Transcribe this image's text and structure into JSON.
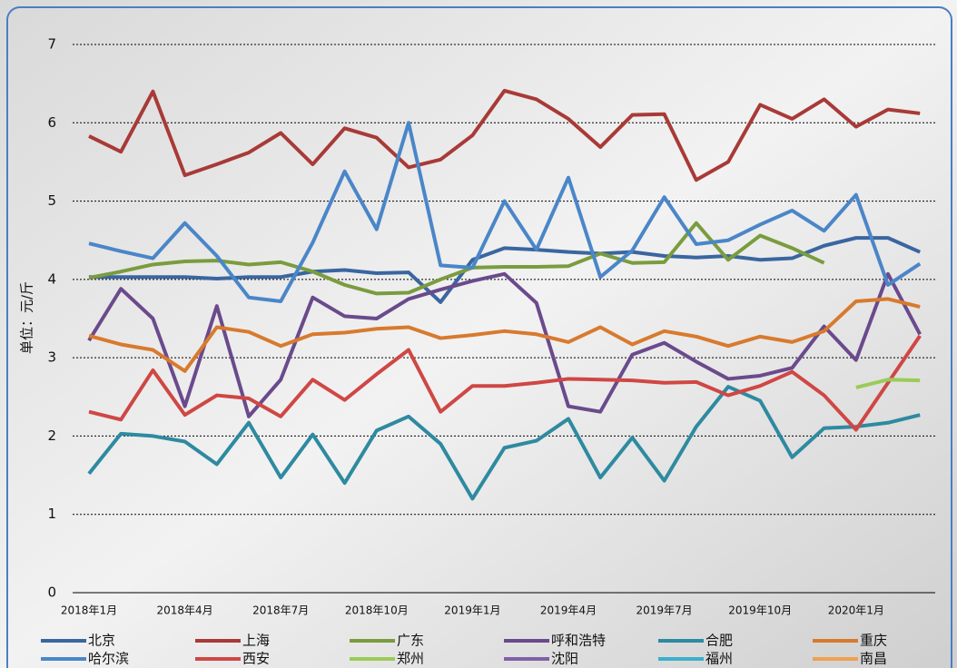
{
  "chart_data": {
    "type": "line",
    "y_label": "单位：元/斤",
    "categories": [
      "2018年1月",
      null,
      null,
      "2018年4月",
      null,
      null,
      "2018年7月",
      null,
      null,
      "2018年10月",
      null,
      null,
      "2019年1月",
      null,
      null,
      "2019年4月",
      null,
      null,
      "2019年7月",
      null,
      null,
      "2019年10月",
      null,
      null,
      "2020年1月",
      null,
      null
    ],
    "ylim": [
      0,
      7
    ],
    "yticks": [
      0,
      1,
      2,
      3,
      4,
      5,
      6,
      7
    ],
    "grid": true,
    "series": [
      {
        "name": "北京",
        "color": "#3a66a0",
        "values": [
          4.03,
          4.03,
          4.03,
          4.03,
          4.01,
          4.03,
          4.03,
          4.1,
          4.12,
          4.08,
          4.09,
          3.71,
          4.25,
          4.4,
          4.38,
          4.35,
          4.33,
          4.35,
          4.3,
          4.28,
          4.3,
          4.25,
          4.27,
          4.43,
          4.53,
          4.53,
          4.35
        ]
      },
      {
        "name": "上海",
        "color": "#a83a37",
        "values": [
          5.83,
          5.63,
          6.4,
          5.33,
          5.47,
          5.62,
          5.87,
          5.47,
          5.93,
          5.81,
          5.43,
          5.53,
          5.84,
          6.41,
          6.3,
          6.05,
          5.69,
          6.1,
          6.11,
          5.27,
          5.5,
          6.23,
          6.05,
          6.3,
          5.95,
          6.17,
          6.12
        ]
      },
      {
        "name": "广东",
        "color": "#7a9c3e",
        "values": [
          4.02,
          4.1,
          4.19,
          4.23,
          4.24,
          4.19,
          4.22,
          4.1,
          3.93,
          3.82,
          3.83,
          4.0,
          4.15,
          4.16,
          4.16,
          4.17,
          4.33,
          4.21,
          4.22,
          4.72,
          4.25,
          4.56,
          4.4,
          4.21,
          null,
          null,
          null
        ]
      },
      {
        "name": "呼和浩特",
        "color": "#6a4a8c",
        "values": [
          3.22,
          3.88,
          3.5,
          2.38,
          3.66,
          2.25,
          2.72,
          3.77,
          3.53,
          3.5,
          3.75,
          3.87,
          3.98,
          4.07,
          3.7,
          2.38,
          2.31,
          3.04,
          3.19,
          2.95,
          2.73,
          2.77,
          2.87,
          3.4,
          2.97,
          4.07,
          3.3
        ]
      },
      {
        "name": "合肥",
        "color": "#2e8aa0",
        "values": [
          1.52,
          2.03,
          2.0,
          1.93,
          1.64,
          2.17,
          1.47,
          2.02,
          1.4,
          2.07,
          2.25,
          1.9,
          1.2,
          1.85,
          1.94,
          2.22,
          1.47,
          1.98,
          1.43,
          2.12,
          2.63,
          2.45,
          1.73,
          2.1,
          2.12,
          2.17,
          2.27
        ]
      },
      {
        "name": "重庆",
        "color": "#d87a2e",
        "values": [
          3.28,
          3.17,
          3.1,
          2.83,
          3.39,
          3.33,
          3.15,
          3.3,
          3.32,
          3.37,
          3.39,
          3.25,
          3.29,
          3.34,
          3.3,
          3.2,
          3.39,
          3.17,
          3.34,
          3.27,
          3.15,
          3.27,
          3.2,
          3.34,
          3.72,
          3.75,
          3.65
        ]
      },
      {
        "name": "哈尔滨",
        "color": "#4a86c8",
        "values": [
          4.46,
          4.36,
          4.27,
          4.72,
          4.3,
          3.77,
          3.72,
          4.47,
          5.38,
          4.64,
          6.0,
          4.18,
          4.15,
          5.0,
          4.38,
          5.3,
          4.03,
          4.37,
          5.05,
          4.45,
          4.5,
          4.7,
          4.88,
          4.62,
          5.08,
          3.93,
          4.2
        ]
      },
      {
        "name": "西安",
        "color": "#cf4744",
        "values": [
          2.31,
          2.21,
          2.84,
          2.27,
          2.52,
          2.48,
          2.25,
          2.72,
          2.46,
          2.79,
          3.1,
          2.31,
          2.64,
          2.64,
          2.68,
          2.73,
          2.72,
          2.71,
          2.68,
          2.69,
          2.52,
          2.64,
          2.82,
          2.52,
          2.08,
          2.68,
          3.28
        ]
      },
      {
        "name": "郑州",
        "color": "#9acb58",
        "values": [
          null,
          null,
          null,
          null,
          null,
          null,
          null,
          null,
          null,
          null,
          null,
          null,
          null,
          null,
          null,
          null,
          null,
          null,
          null,
          null,
          null,
          null,
          null,
          null,
          2.62,
          2.72,
          2.71
        ]
      },
      {
        "name": "沈阳",
        "color": "#8060a8",
        "values": [
          null,
          null,
          null,
          null,
          null,
          null,
          null,
          null,
          null,
          null,
          null,
          null,
          null,
          null,
          null,
          null,
          null,
          null,
          null,
          null,
          null,
          null,
          null,
          null,
          null,
          null,
          null
        ]
      },
      {
        "name": "福州",
        "color": "#3bb0cc",
        "values": [
          null,
          null,
          null,
          null,
          null,
          null,
          null,
          null,
          null,
          null,
          null,
          null,
          null,
          null,
          null,
          null,
          null,
          null,
          null,
          null,
          null,
          null,
          null,
          null,
          null,
          null,
          null
        ]
      },
      {
        "name": "南昌",
        "color": "#f0a050",
        "values": [
          null,
          null,
          null,
          null,
          null,
          null,
          null,
          null,
          null,
          null,
          null,
          null,
          null,
          null,
          null,
          null,
          null,
          null,
          null,
          null,
          null,
          null,
          null,
          null,
          null,
          null,
          null
        ]
      }
    ]
  }
}
